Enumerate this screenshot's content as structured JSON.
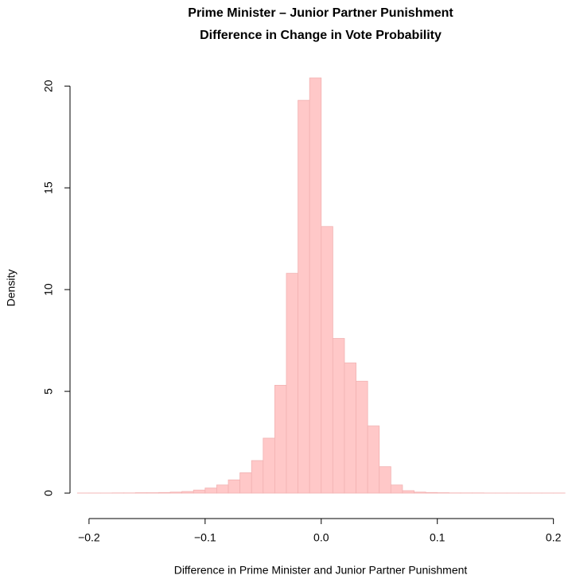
{
  "chart_data": {
    "type": "histogram",
    "title": [
      "Prime Minister – Junior Partner Punishment",
      "Difference in Change in Vote Probability"
    ],
    "x_label": "Difference in Prime Minister and Junior Partner Punishment",
    "y_label": "Density",
    "color": "#ffc8c8",
    "edge_color": "#f2b2b2",
    "bins": [
      -0.21,
      -0.2,
      -0.19,
      -0.18,
      -0.17,
      -0.16,
      -0.15,
      -0.14,
      -0.13,
      -0.12,
      -0.11,
      -0.1,
      -0.09,
      -0.08,
      -0.07,
      -0.06,
      -0.05,
      -0.04,
      -0.03,
      -0.02,
      -0.01,
      0,
      0.01,
      0.02,
      0.03,
      0.04,
      0.05,
      0.06,
      0.07,
      0.08,
      0.09,
      0.1,
      0.11,
      0.12,
      0.13,
      0.14,
      0.15,
      0.16,
      0.17,
      0.18,
      0.19,
      0.2,
      0.21
    ],
    "values": [
      0.005,
      0.005,
      0.005,
      0.01,
      0.01,
      0.02,
      0.02,
      0.03,
      0.05,
      0.08,
      0.15,
      0.25,
      0.4,
      0.65,
      1.0,
      1.6,
      2.7,
      5.3,
      10.8,
      19.3,
      20.4,
      13.1,
      7.6,
      6.4,
      5.5,
      3.3,
      1.3,
      0.4,
      0.12,
      0.05,
      0.03,
      0.02,
      0.01,
      0.01,
      0.01,
      0.005,
      0.005,
      0.005,
      0.005,
      0.005,
      0.005,
      0.005
    ],
    "xlim": [
      -0.215,
      0.216
    ],
    "ylim": [
      -0.82,
      21.22
    ],
    "xticks": [
      {
        "value": -0.2,
        "label": "−0.2"
      },
      {
        "value": -0.1,
        "label": "−0.1"
      },
      {
        "value": 0,
        "label": "0.0"
      },
      0.1,
      0.2
    ],
    "yticks": [
      0,
      5,
      10,
      15,
      20
    ]
  }
}
